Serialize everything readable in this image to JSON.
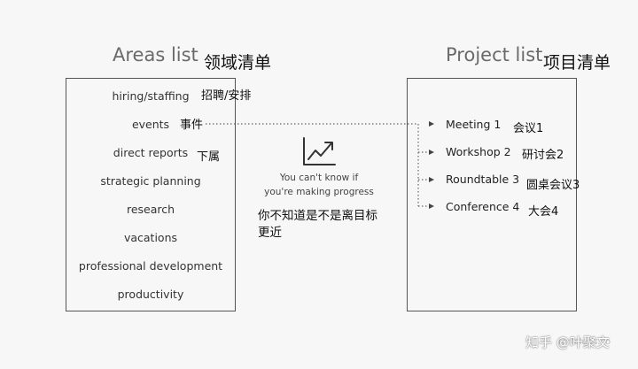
{
  "areas": {
    "title": "Areas list",
    "title_zh": "领域清单",
    "items": [
      {
        "label": "hiring/staffing",
        "zh": "招聘/安排"
      },
      {
        "label": "events",
        "zh": "事件"
      },
      {
        "label": "direct reports",
        "zh": "下属"
      },
      {
        "label": "strategic planning",
        "zh": ""
      },
      {
        "label": "research",
        "zh": ""
      },
      {
        "label": "vacations",
        "zh": ""
      },
      {
        "label": "professional development",
        "zh": ""
      },
      {
        "label": "productivity",
        "zh": ""
      }
    ]
  },
  "projects": {
    "title": "Project list",
    "title_zh": "项目清单",
    "items": [
      {
        "label": "Meeting 1",
        "zh": "会议1"
      },
      {
        "label": "Workshop 2",
        "zh": "研讨会2"
      },
      {
        "label": "Roundtable 3",
        "zh": "圆桌会议3"
      },
      {
        "label": "Conference 4",
        "zh": "大会4"
      }
    ]
  },
  "middle": {
    "icon": "trending-up-chart-icon",
    "caption_line1": "You can't know if",
    "caption_line2": "you're making progress",
    "caption_zh_line1": "你不知道是不是离目标",
    "caption_zh_line2": "更近"
  },
  "watermark": {
    "text": "知乎 @叶聚文",
    "faint": "fortelabs.co"
  }
}
